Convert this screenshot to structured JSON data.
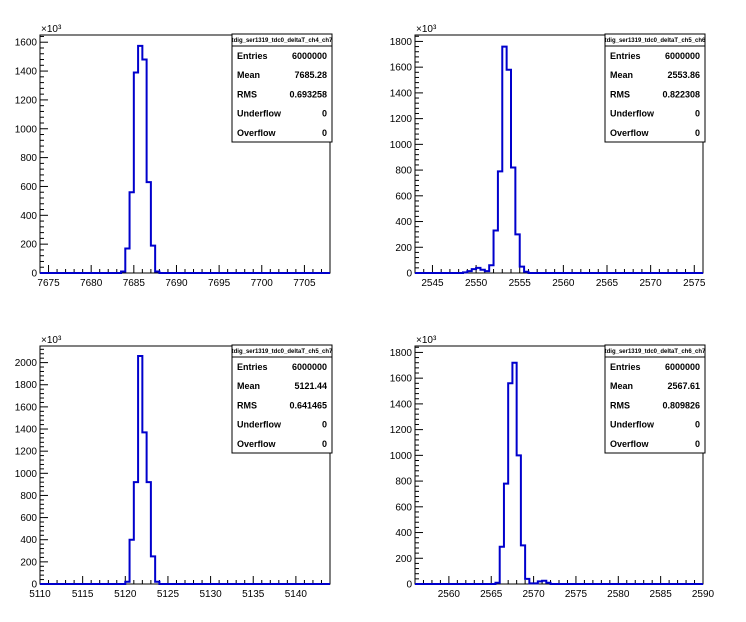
{
  "chart_data": [
    {
      "type": "histogram",
      "x": [
        7683,
        7683.5,
        7684,
        7684.5,
        7685,
        7685.5,
        7686,
        7686.5,
        7687,
        7687.5
      ],
      "values": [
        0,
        10,
        170,
        560,
        1390,
        1575,
        1480,
        630,
        190,
        10
      ],
      "xlim": [
        7674,
        7708
      ],
      "ylim": [
        0,
        1650
      ],
      "xticks": [
        "7675",
        "7680",
        "7685",
        "7690",
        "7695",
        "7700",
        "7705"
      ],
      "yticks": [
        "0",
        "200",
        "400",
        "600",
        "800",
        "1000",
        "1200",
        "1400",
        "1600"
      ],
      "ytick_values": [
        0,
        200,
        400,
        600,
        800,
        1000,
        1200,
        1400,
        1600
      ],
      "xtick_values": [
        7675,
        7680,
        7685,
        7690,
        7695,
        7700,
        7705
      ],
      "multiplier": "×10³",
      "stats": {
        "title": "tdig_ser1319_tdc0_deltaT_ch4_ch7",
        "rows": [
          {
            "label": "Entries",
            "value": "6000000"
          },
          {
            "label": "Mean",
            "value": "7685.28"
          },
          {
            "label": "RMS",
            "value": "0.693258"
          },
          {
            "label": "Underflow",
            "value": "0"
          },
          {
            "label": "Overflow",
            "value": "0"
          }
        ]
      }
    },
    {
      "type": "histogram",
      "x": [
        2548,
        2548.5,
        2549,
        2549.5,
        2550,
        2550.5,
        2551,
        2551.5,
        2552,
        2552.5,
        2553,
        2553.5,
        2554,
        2554.5,
        2555,
        2555.5,
        2556
      ],
      "values": [
        0,
        5,
        15,
        30,
        40,
        25,
        15,
        60,
        330,
        790,
        1760,
        1580,
        820,
        300,
        50,
        10,
        0
      ],
      "xlim": [
        2543,
        2576
      ],
      "ylim": [
        0,
        1850
      ],
      "xticks": [
        "2545",
        "2550",
        "2555",
        "2560",
        "2565",
        "2570",
        "2575"
      ],
      "yticks": [
        "0",
        "200",
        "400",
        "600",
        "800",
        "1000",
        "1200",
        "1400",
        "1600",
        "1800"
      ],
      "ytick_values": [
        0,
        200,
        400,
        600,
        800,
        1000,
        1200,
        1400,
        1600,
        1800
      ],
      "xtick_values": [
        2545,
        2550,
        2555,
        2560,
        2565,
        2570,
        2575
      ],
      "multiplier": "×10³",
      "stats": {
        "title": "tdig_ser1319_tdc0_deltaT_ch5_ch6",
        "rows": [
          {
            "label": "Entries",
            "value": "6000000"
          },
          {
            "label": "Mean",
            "value": "2553.86"
          },
          {
            "label": "RMS",
            "value": "0.822308"
          },
          {
            "label": "Underflow",
            "value": "0"
          },
          {
            "label": "Overflow",
            "value": "0"
          }
        ]
      }
    },
    {
      "type": "histogram",
      "x": [
        5119.5,
        5120,
        5120.5,
        5121,
        5121.5,
        5122,
        5122.5,
        5123,
        5123.5
      ],
      "values": [
        0,
        20,
        400,
        920,
        2060,
        1370,
        920,
        250,
        20
      ],
      "xlim": [
        5110,
        5144
      ],
      "ylim": [
        0,
        2150
      ],
      "xticks": [
        "5110",
        "5115",
        "5120",
        "5125",
        "5130",
        "5135",
        "5140"
      ],
      "yticks": [
        "0",
        "200",
        "400",
        "600",
        "800",
        "1000",
        "1200",
        "1400",
        "1600",
        "1800",
        "2000"
      ],
      "ytick_values": [
        0,
        200,
        400,
        600,
        800,
        1000,
        1200,
        1400,
        1600,
        1800,
        2000
      ],
      "xtick_values": [
        5110,
        5115,
        5120,
        5125,
        5130,
        5135,
        5140
      ],
      "multiplier": "×10³",
      "stats": {
        "title": "tdig_ser1319_tdc0_deltaT_ch5_ch7",
        "rows": [
          {
            "label": "Entries",
            "value": "6000000"
          },
          {
            "label": "Mean",
            "value": "5121.44"
          },
          {
            "label": "RMS",
            "value": "0.641465"
          },
          {
            "label": "Underflow",
            "value": "0"
          },
          {
            "label": "Overflow",
            "value": "0"
          }
        ]
      }
    },
    {
      "type": "histogram",
      "x": [
        2565,
        2565.5,
        2566,
        2566.5,
        2567,
        2567.5,
        2568,
        2568.5,
        2569,
        2569.5,
        2570,
        2570.5,
        2571,
        2571.5,
        2572,
        2572.5
      ],
      "values": [
        0,
        10,
        290,
        780,
        1560,
        1720,
        1000,
        300,
        40,
        5,
        5,
        20,
        25,
        10,
        0,
        0
      ],
      "xlim": [
        2556,
        2590
      ],
      "ylim": [
        0,
        1850
      ],
      "xticks": [
        "2560",
        "2565",
        "2570",
        "2575",
        "2580",
        "2585",
        "2590"
      ],
      "yticks": [
        "0",
        "200",
        "400",
        "600",
        "800",
        "1000",
        "1200",
        "1400",
        "1600",
        "1800"
      ],
      "ytick_values": [
        0,
        200,
        400,
        600,
        800,
        1000,
        1200,
        1400,
        1600,
        1800
      ],
      "xtick_values": [
        2560,
        2565,
        2570,
        2575,
        2580,
        2585,
        2590
      ],
      "multiplier": "×10³",
      "stats": {
        "title": "tdig_ser1319_tdc0_deltaT_ch6_ch7",
        "rows": [
          {
            "label": "Entries",
            "value": "6000000"
          },
          {
            "label": "Mean",
            "value": "2567.61"
          },
          {
            "label": "RMS",
            "value": "0.809826"
          },
          {
            "label": "Underflow",
            "value": "0"
          },
          {
            "label": "Overflow",
            "value": "0"
          }
        ]
      }
    }
  ],
  "colors": {
    "line": "#0000cc",
    "axis": "#000000"
  }
}
